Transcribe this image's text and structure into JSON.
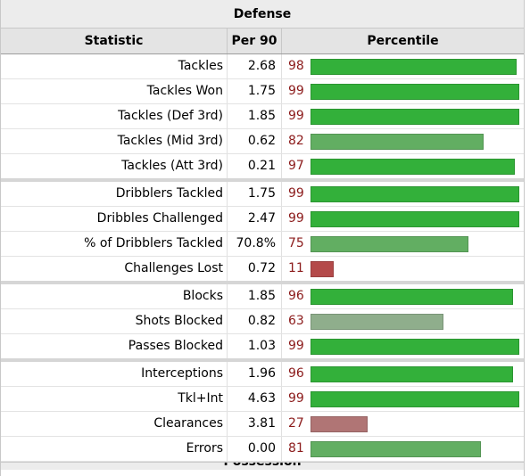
{
  "section_title": "Defense",
  "columns": {
    "statistic": "Statistic",
    "per90": "Per 90",
    "percentile": "Percentile"
  },
  "colors": {
    "high": "#33b03a",
    "mid_high": "#62ae62",
    "mid": "#8fae8c",
    "low": "#b07575",
    "very_low": "#b44a4a",
    "percentile_text": "#8b1a1a"
  },
  "groups": [
    [
      {
        "stat": "Tackles",
        "per90": "2.68",
        "percentile": "98"
      },
      {
        "stat": "Tackles Won",
        "per90": "1.75",
        "percentile": "99"
      },
      {
        "stat": "Tackles (Def 3rd)",
        "per90": "1.85",
        "percentile": "99"
      },
      {
        "stat": "Tackles (Mid 3rd)",
        "per90": "0.62",
        "percentile": "82"
      },
      {
        "stat": "Tackles (Att 3rd)",
        "per90": "0.21",
        "percentile": "97"
      }
    ],
    [
      {
        "stat": "Dribblers Tackled",
        "per90": "1.75",
        "percentile": "99"
      },
      {
        "stat": "Dribbles Challenged",
        "per90": "2.47",
        "percentile": "99"
      },
      {
        "stat": "% of Dribblers Tackled",
        "per90": "70.8%",
        "percentile": "75"
      },
      {
        "stat": "Challenges Lost",
        "per90": "0.72",
        "percentile": "11"
      }
    ],
    [
      {
        "stat": "Blocks",
        "per90": "1.85",
        "percentile": "96"
      },
      {
        "stat": "Shots Blocked",
        "per90": "0.82",
        "percentile": "63"
      },
      {
        "stat": "Passes Blocked",
        "per90": "1.03",
        "percentile": "99"
      }
    ],
    [
      {
        "stat": "Interceptions",
        "per90": "1.96",
        "percentile": "96"
      },
      {
        "stat": "Tkl+Int",
        "per90": "4.63",
        "percentile": "99"
      },
      {
        "stat": "Clearances",
        "per90": "3.81",
        "percentile": "27"
      },
      {
        "stat": "Errors",
        "per90": "0.00",
        "percentile": "81"
      }
    ]
  ],
  "next_section_title": "Possession"
}
